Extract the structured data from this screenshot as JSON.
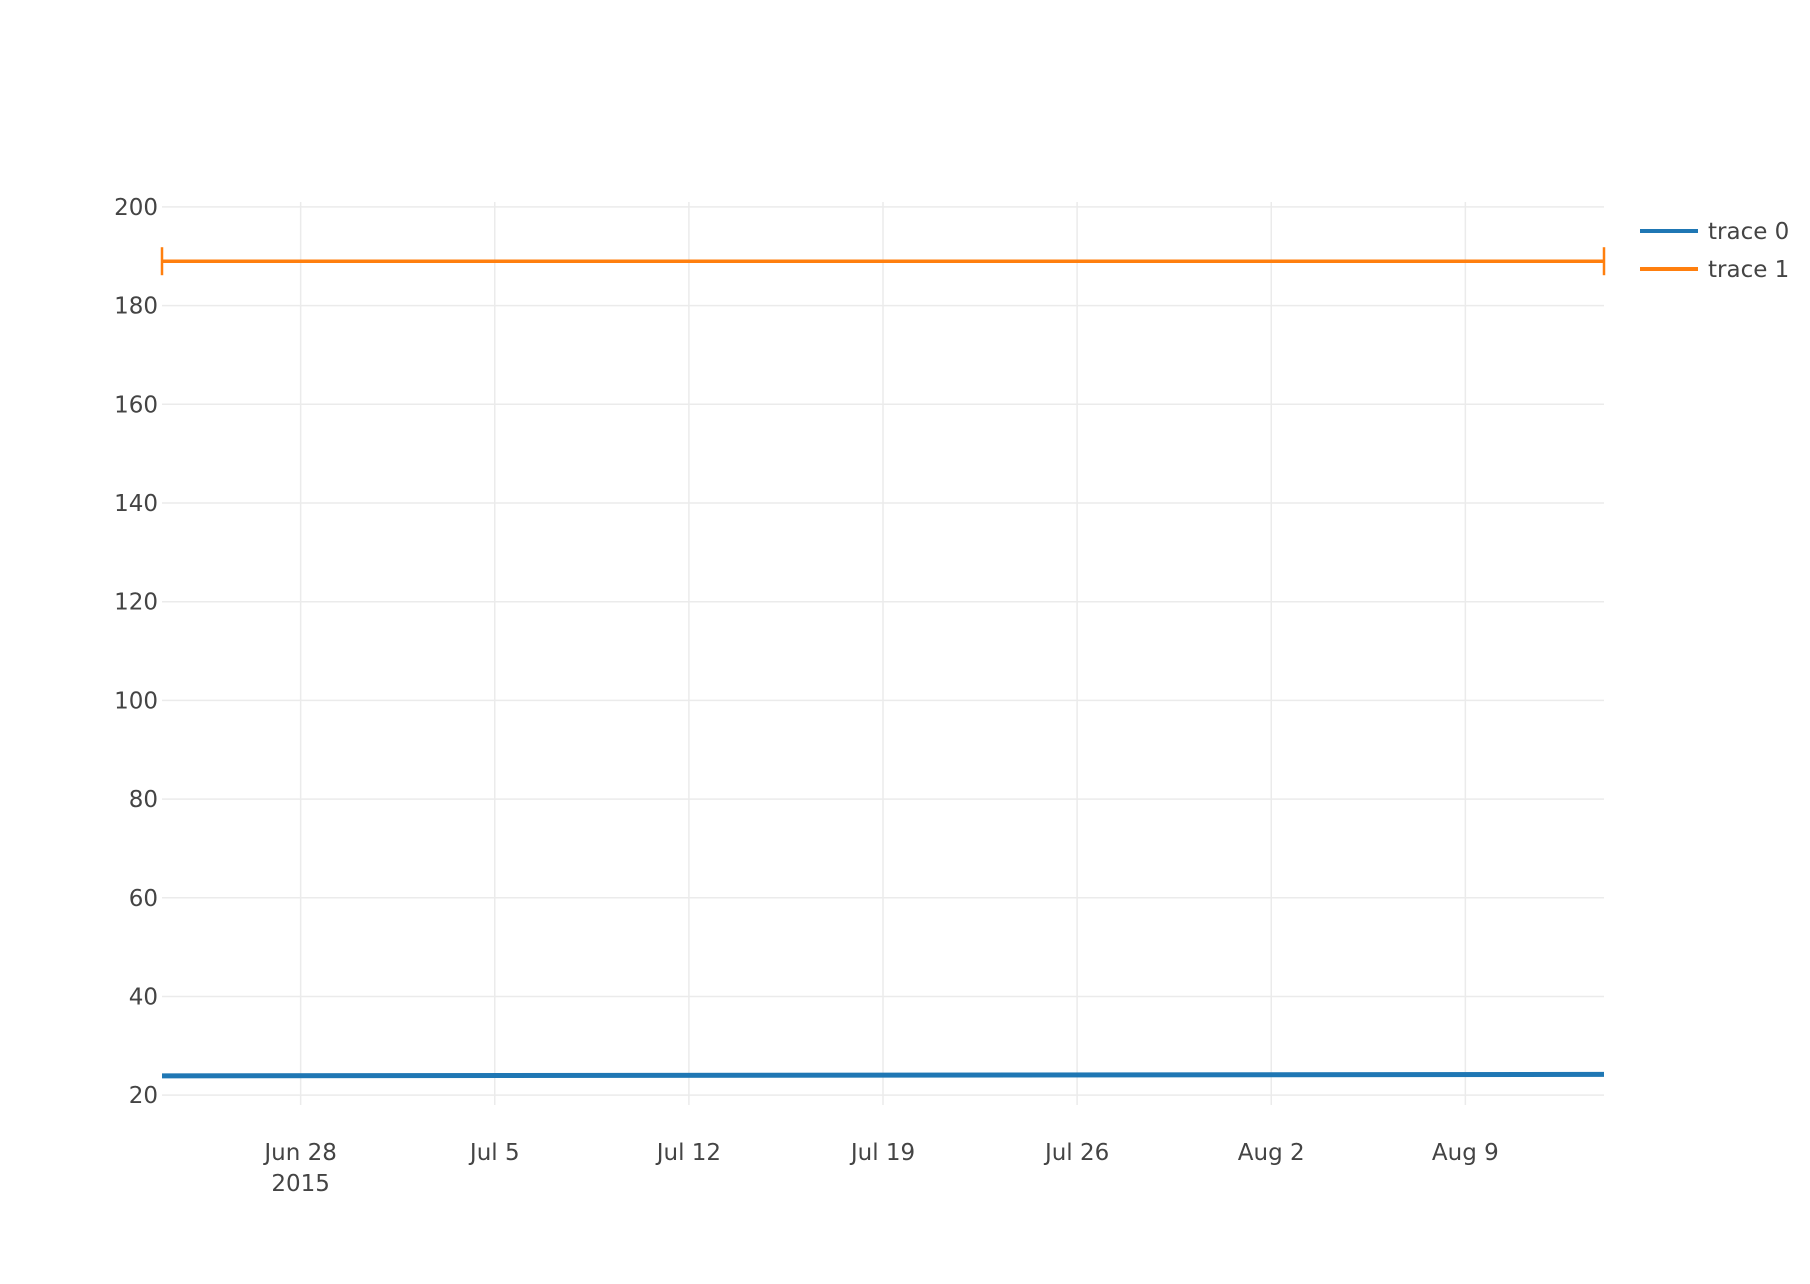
{
  "chart_data": {
    "type": "line",
    "x_axis": {
      "type": "date",
      "range": [
        "2015-06-23",
        "2015-08-14"
      ],
      "ticks": [
        {
          "date": "2015-06-28",
          "label": "Jun 28",
          "sublabel": "2015"
        },
        {
          "date": "2015-07-05",
          "label": "Jul 5"
        },
        {
          "date": "2015-07-12",
          "label": "Jul 12"
        },
        {
          "date": "2015-07-19",
          "label": "Jul 19"
        },
        {
          "date": "2015-07-26",
          "label": "Jul 26"
        },
        {
          "date": "2015-08-02",
          "label": "Aug 2"
        },
        {
          "date": "2015-08-09",
          "label": "Aug 9"
        }
      ],
      "grid": true
    },
    "y_axis": {
      "range": [
        18,
        201
      ],
      "ticks": [
        20,
        40,
        60,
        80,
        100,
        120,
        140,
        160,
        180,
        200
      ],
      "grid": true
    },
    "series": [
      {
        "name": "trace 0",
        "color": "#1f77b4",
        "x": [
          "2015-06-23",
          "2015-08-14"
        ],
        "y": [
          23.9,
          24.2
        ]
      },
      {
        "name": "trace 1",
        "color": "#ff7f0e",
        "x": [
          "2015-06-23",
          "2015-08-14"
        ],
        "y": [
          189,
          189
        ],
        "end_caps": true
      }
    ],
    "legend": {
      "position": "top-right"
    }
  }
}
